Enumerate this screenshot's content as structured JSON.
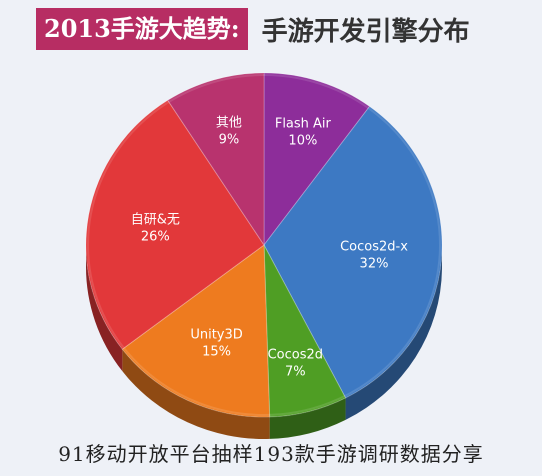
{
  "header": {
    "title_main": "2013手游大趋势:",
    "title_sub": "手游开发引擎分布"
  },
  "footer": {
    "caption": "91移动开放平台抽样193款手游调研数据分享"
  },
  "chart_data": {
    "type": "pie",
    "slices": [
      {
        "name": "Flash Air",
        "value": 10,
        "label": "10%",
        "color": "#8d2d9a"
      },
      {
        "name": "Cocos2d-x",
        "value": 32,
        "label": "32%",
        "color": "#3d79c3"
      },
      {
        "name": "Cocos2d",
        "value": 7,
        "label": "7%",
        "color": "#4f9e24"
      },
      {
        "name": "Unity3D",
        "value": 15,
        "label": "15%",
        "color": "#ee7b1f"
      },
      {
        "name": "自研&无",
        "value": 26,
        "label": "26%",
        "color": "#e2383a"
      },
      {
        "name": "其他",
        "value": 9,
        "label": "9%",
        "color": "#b8336e"
      }
    ]
  }
}
